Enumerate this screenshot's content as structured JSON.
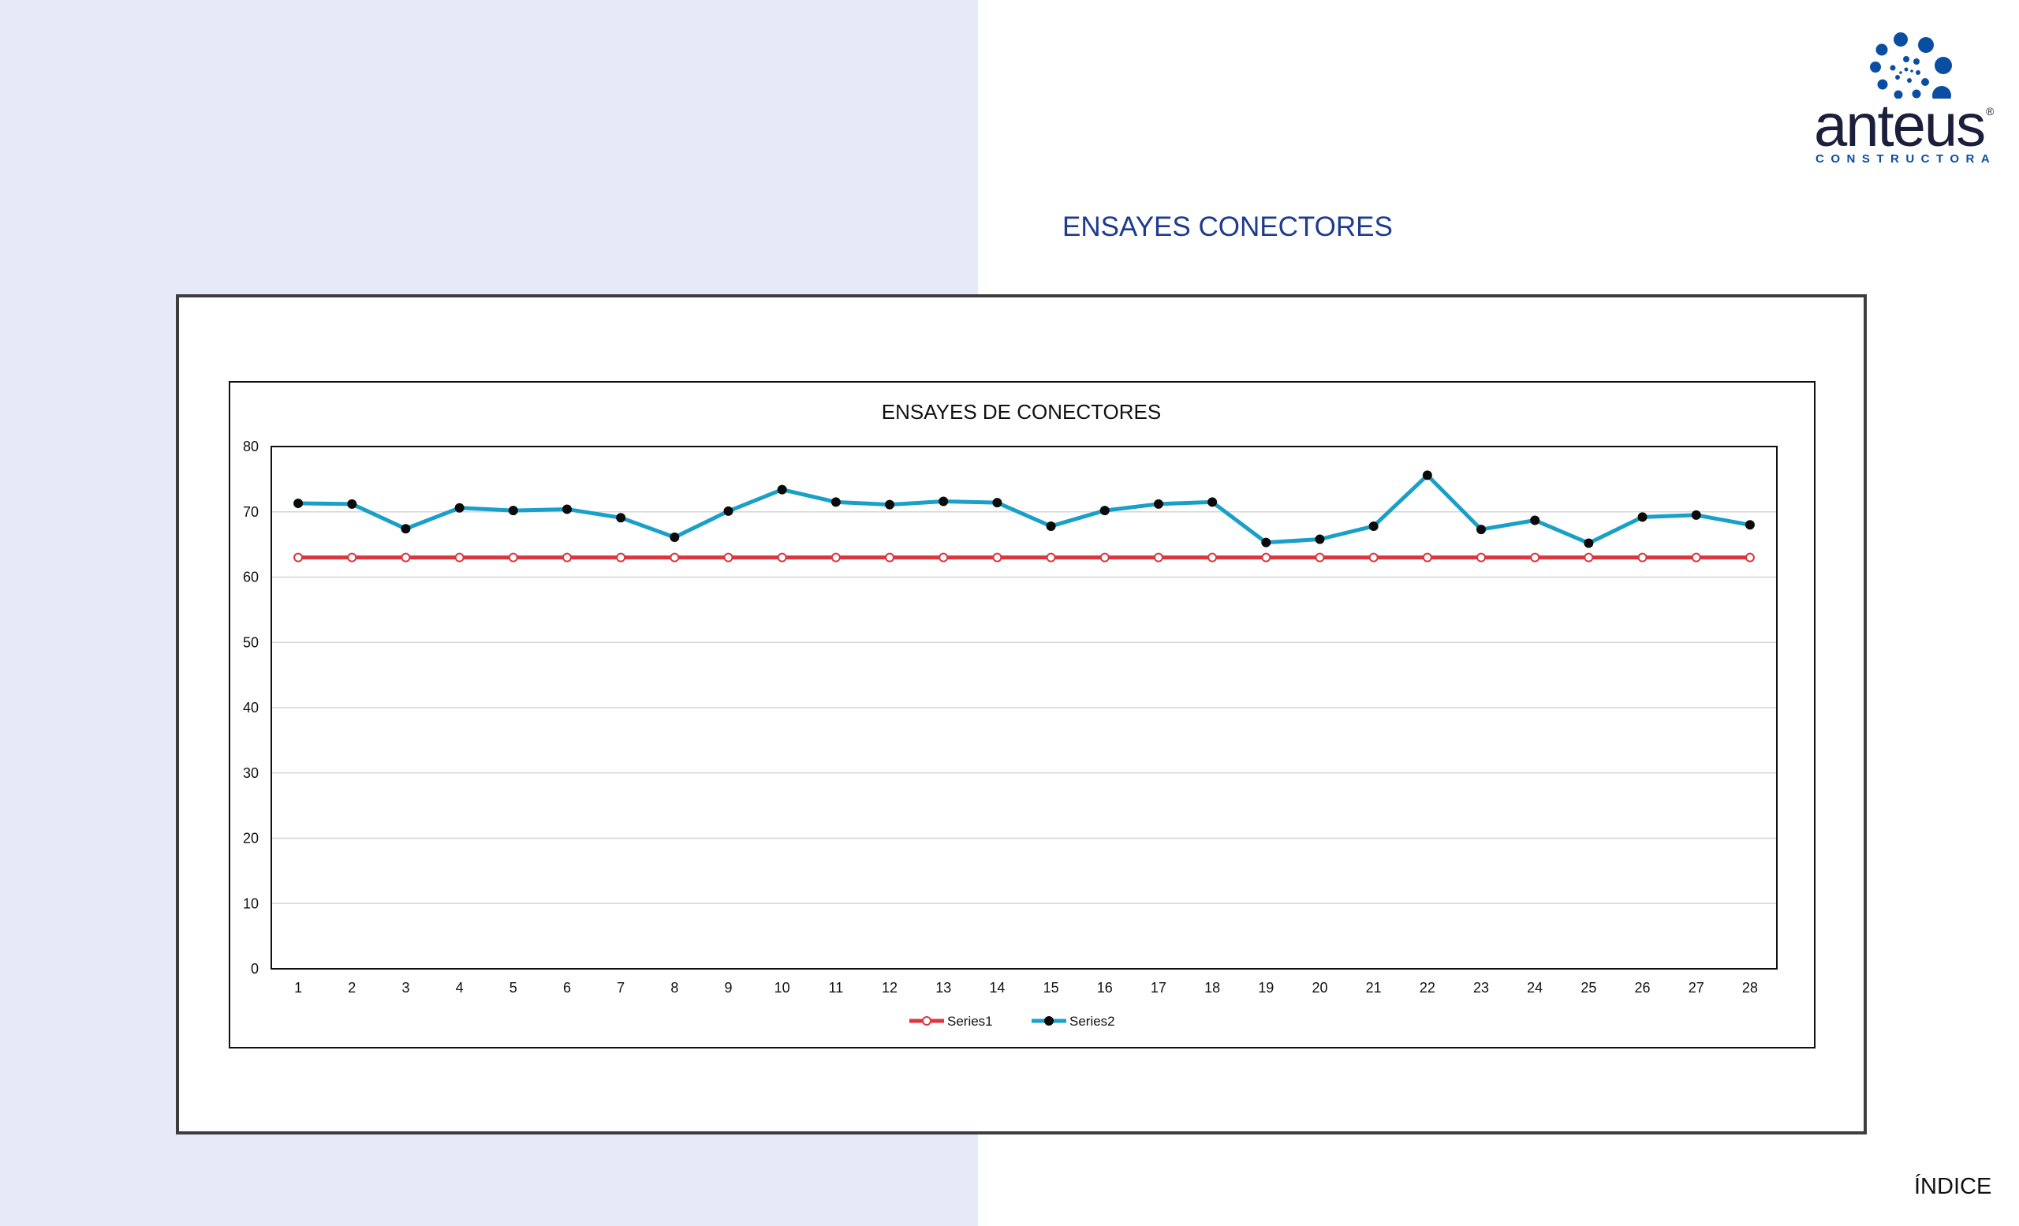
{
  "header": {
    "page_title": "ENSAYES CONECTORES",
    "logo_text": "anteus",
    "logo_subtext": "CONSTRUCTORA",
    "logo_registered": "®"
  },
  "footer": {
    "index_label": "ÍNDICE"
  },
  "colors": {
    "background_left": "#e6e9f8",
    "title": "#1f3b8f",
    "logo_blue": "#0a4ea3",
    "series1": "#d9363e",
    "series2": "#1aa0c8"
  },
  "chart_data": {
    "type": "line",
    "title": "ENSAYES DE CONECTORES",
    "xlabel": "",
    "ylabel": "",
    "x": [
      1,
      2,
      3,
      4,
      5,
      6,
      7,
      8,
      9,
      10,
      11,
      12,
      13,
      14,
      15,
      16,
      17,
      18,
      19,
      20,
      21,
      22,
      23,
      24,
      25,
      26,
      27,
      28
    ],
    "ylim": [
      0,
      80
    ],
    "yticks": [
      0,
      10,
      20,
      30,
      40,
      50,
      60,
      70,
      80
    ],
    "grid": true,
    "legend_position": "bottom",
    "series": [
      {
        "name": "Series1",
        "color": "#d9363e",
        "marker": "hollow-circle",
        "values": [
          63,
          63,
          63,
          63,
          63,
          63,
          63,
          63,
          63,
          63,
          63,
          63,
          63,
          63,
          63,
          63,
          63,
          63,
          63,
          63,
          63,
          63,
          63,
          63,
          63,
          63,
          63,
          63
        ]
      },
      {
        "name": "Series2",
        "color": "#1aa0c8",
        "marker": "filled-circle",
        "values": [
          71.3,
          71.2,
          67.4,
          70.6,
          70.2,
          70.4,
          69.1,
          66.1,
          70.1,
          73.4,
          71.5,
          71.1,
          71.6,
          71.4,
          67.8,
          70.2,
          71.2,
          71.5,
          65.3,
          65.8,
          67.8,
          75.6,
          67.3,
          68.7,
          65.2,
          69.2,
          69.5,
          68.0
        ]
      }
    ]
  }
}
